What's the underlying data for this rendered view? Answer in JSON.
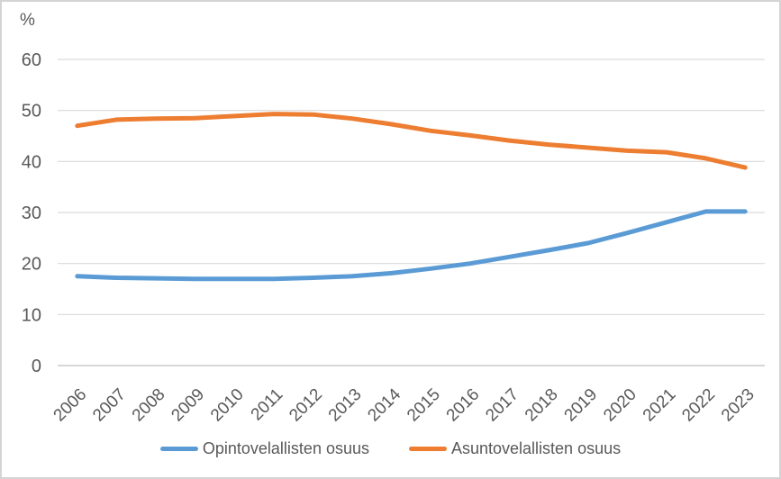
{
  "chart_data": {
    "type": "line",
    "title": "",
    "ylabel": "%",
    "xlabel": "",
    "x": [
      "2006",
      "2007",
      "2008",
      "2009",
      "2010",
      "2011",
      "2012",
      "2013",
      "2014",
      "2015",
      "2016",
      "2017",
      "2018",
      "2019",
      "2020",
      "2021",
      "2022",
      "2023"
    ],
    "yticks": [
      0,
      10,
      20,
      30,
      40,
      50,
      60
    ],
    "ylim": [
      0,
      60
    ],
    "grid": "horizontal",
    "legend_position": "bottom",
    "series": [
      {
        "name": "Opintovelallisten osuus",
        "color": "#5B9BD5",
        "values": [
          17.5,
          17.2,
          17.1,
          17.0,
          17.0,
          17.0,
          17.2,
          17.5,
          18.1,
          19.0,
          20.0,
          21.3,
          22.6,
          24.0,
          26.0,
          28.1,
          30.2,
          30.2
        ]
      },
      {
        "name": "Asuntovelallisten osuus",
        "color": "#ED7D31",
        "values": [
          47.0,
          48.2,
          48.4,
          48.5,
          48.9,
          49.3,
          49.2,
          48.4,
          47.3,
          46.0,
          45.1,
          44.1,
          43.3,
          42.7,
          42.1,
          41.8,
          40.6,
          38.8
        ]
      }
    ],
    "colors": {
      "text": "#595959",
      "gridline": "#D9D9D9",
      "axis_line": "#BFBFBF",
      "background": "#FFFFFF",
      "border": "#D4D4D4"
    }
  }
}
